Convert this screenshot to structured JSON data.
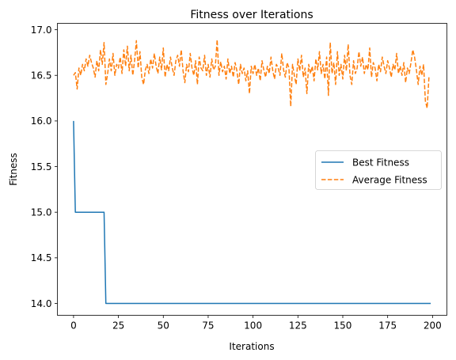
{
  "chart_data": {
    "type": "line",
    "title": "Fitness over Iterations",
    "xlabel": "Iterations",
    "ylabel": "Fitness",
    "xlim": [
      -9,
      208
    ],
    "ylim": [
      13.87,
      17.07
    ],
    "xticks": [
      0,
      25,
      50,
      75,
      100,
      125,
      150,
      175,
      200
    ],
    "yticks": [
      14.0,
      14.5,
      15.0,
      15.5,
      16.0,
      16.5,
      17.0
    ],
    "ytick_labels": [
      "14.0",
      "14.5",
      "15.0",
      "15.5",
      "16.0",
      "16.5",
      "17.0"
    ],
    "grid": false,
    "legend_position": "center-right",
    "series": [
      {
        "name": "Best Fitness",
        "style": "solid",
        "color": "#1f77b4",
        "points": [
          [
            0,
            16.0
          ],
          [
            1,
            15.0
          ],
          [
            17,
            15.0
          ],
          [
            18,
            14.0
          ],
          [
            199,
            14.0
          ]
        ]
      },
      {
        "name": "Average Fitness",
        "style": "dashed",
        "color": "#ff7f0e",
        "values": [
          16.5,
          16.53,
          16.35,
          16.58,
          16.5,
          16.62,
          16.55,
          16.68,
          16.6,
          16.72,
          16.64,
          16.58,
          16.48,
          16.66,
          16.55,
          16.78,
          16.62,
          16.86,
          16.4,
          16.52,
          16.68,
          16.55,
          16.74,
          16.5,
          16.62,
          16.58,
          16.7,
          16.52,
          16.78,
          16.6,
          16.82,
          16.55,
          16.72,
          16.5,
          16.66,
          16.88,
          16.58,
          16.76,
          16.48,
          16.4,
          16.56,
          16.62,
          16.52,
          16.68,
          16.58,
          16.74,
          16.6,
          16.52,
          16.7,
          16.56,
          16.8,
          16.48,
          16.62,
          16.55,
          16.7,
          16.58,
          16.5,
          16.66,
          16.72,
          16.6,
          16.78,
          16.55,
          16.42,
          16.62,
          16.54,
          16.74,
          16.58,
          16.5,
          16.66,
          16.4,
          16.7,
          16.58,
          16.55,
          16.72,
          16.5,
          16.62,
          16.48,
          16.68,
          16.56,
          16.6,
          16.89,
          16.5,
          16.65,
          16.54,
          16.6,
          16.46,
          16.68,
          16.52,
          16.6,
          16.48,
          16.64,
          16.55,
          16.4,
          16.62,
          16.52,
          16.58,
          16.44,
          16.55,
          16.3,
          16.6,
          16.52,
          16.62,
          16.5,
          16.58,
          16.44,
          16.66,
          16.56,
          16.48,
          16.6,
          16.52,
          16.7,
          16.55,
          16.46,
          16.62,
          16.58,
          16.5,
          16.74,
          16.56,
          16.48,
          16.64,
          16.58,
          16.16,
          16.62,
          16.5,
          16.4,
          16.68,
          16.55,
          16.72,
          16.48,
          16.58,
          16.3,
          16.62,
          16.52,
          16.6,
          16.44,
          16.68,
          16.56,
          16.76,
          16.52,
          16.62,
          16.46,
          16.7,
          16.28,
          16.86,
          16.52,
          16.64,
          16.4,
          16.76,
          16.5,
          16.62,
          16.46,
          16.72,
          16.55,
          16.84,
          16.5,
          16.4,
          16.66,
          16.52,
          16.58,
          16.76,
          16.6,
          16.7,
          16.52,
          16.62,
          16.56,
          16.8,
          16.48,
          16.64,
          16.58,
          16.44,
          16.62,
          16.54,
          16.7,
          16.6,
          16.52,
          16.66,
          16.58,
          16.48,
          16.62,
          16.56,
          16.74,
          16.52,
          16.6,
          16.5,
          16.64,
          16.42,
          16.58,
          16.52,
          16.64,
          16.78,
          16.7,
          16.56,
          16.4,
          16.6,
          16.5,
          16.62,
          16.22,
          16.14,
          16.48
        ]
      }
    ]
  }
}
